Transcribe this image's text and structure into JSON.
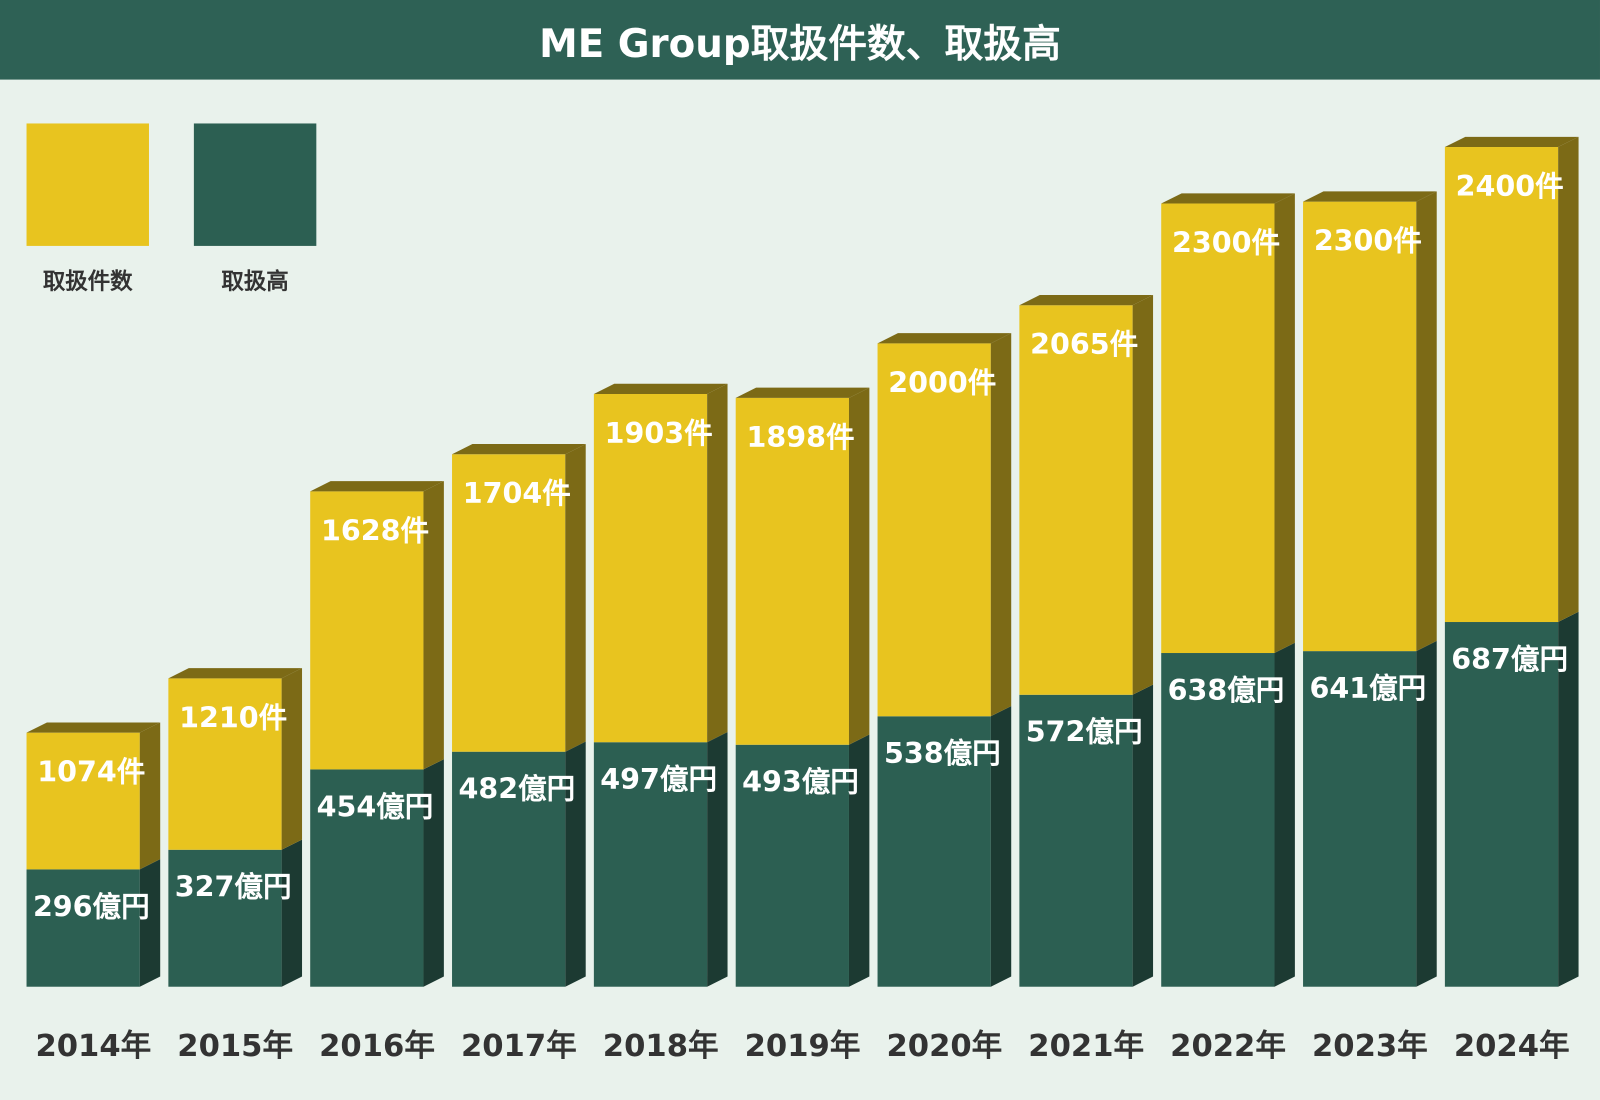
{
  "header": {
    "title": "ME Group取扱件数、取扱高"
  },
  "legend": [
    {
      "label": "取扱件数",
      "color": "#e8c41f"
    },
    {
      "label": "取扱高",
      "color": "#2c5f52"
    }
  ],
  "chart_data": {
    "type": "bar",
    "stacked": true,
    "title": "ME Group取扱件数、取扱高",
    "categories": [
      "2014年",
      "2015年",
      "2016年",
      "2017年",
      "2018年",
      "2019年",
      "2020年",
      "2021年",
      "2022年",
      "2023年",
      "2024年"
    ],
    "series": [
      {
        "name": "取扱高",
        "unit": "億円",
        "color": "#2c5f52",
        "side_color": "#1c3a32",
        "values": [
          296,
          327,
          454,
          482,
          497,
          493,
          538,
          572,
          638,
          641,
          687
        ]
      },
      {
        "name": "取扱件数",
        "unit": "件",
        "color": "#e8c41f",
        "side_color": "#7c6a16",
        "values": [
          1074,
          1210,
          1628,
          1704,
          1903,
          1898,
          2000,
          2065,
          2300,
          2300,
          2400
        ]
      }
    ],
    "grid": false,
    "legend_position": "top-left"
  }
}
